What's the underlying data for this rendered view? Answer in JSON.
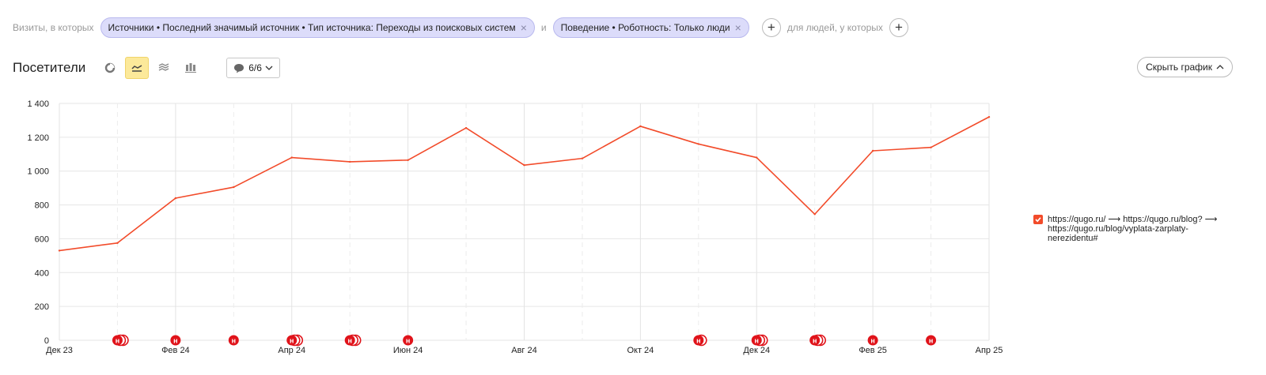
{
  "filters": {
    "prefix": "Визиты, в которых",
    "chip1": "Источники • Последний значимый источник • Тип источника: Переходы из поисковых систем",
    "connector": "и",
    "chip2": "Поведение • Роботность: Только люди",
    "suffix": "для людей, у которых"
  },
  "toolbar": {
    "title": "Посетители",
    "notes_label": "6/6",
    "hide_chart_label": "Скрыть график"
  },
  "legend": {
    "label": "https://qugo.ru/ ⟶ https://qugo.ru/blog? ⟶ https://qugo.ru/blog/vyplata-zarplaty-nerezidentu#"
  },
  "colors": {
    "series": "#f24b2a",
    "chip_bg": "#dcdcfa",
    "active_button": "#fce99a",
    "note_marker": "#e0131a"
  },
  "chart_data": {
    "type": "line",
    "title": "",
    "xlabel": "",
    "ylabel": "",
    "ylim": [
      0,
      1400
    ],
    "yticks": [
      0,
      200,
      400,
      600,
      800,
      1000,
      1200,
      1400
    ],
    "ytick_labels": [
      "0",
      "200",
      "400",
      "600",
      "800",
      "1 000",
      "1 200",
      "1 400"
    ],
    "grid": true,
    "legend_position": "right",
    "x_tick_labels": [
      "Дек 23",
      "Фев 24",
      "Апр 24",
      "Июн 24",
      "Авг 24",
      "Окт 24",
      "Дек 24",
      "Фев 25",
      "Апр 25"
    ],
    "x_tick_index": [
      0,
      2,
      4,
      6,
      8,
      10,
      12,
      14,
      16
    ],
    "series": [
      {
        "name": "https://qugo.ru/ ⟶ https://qugo.ru/blog? ⟶ https://qugo.ru/blog/vyplata-zarplaty-nerezidentu#",
        "color": "#f24b2a",
        "values": [
          530,
          575,
          840,
          905,
          1080,
          1055,
          1065,
          1255,
          1035,
          1075,
          1265,
          1160,
          1080,
          745,
          1120,
          1140,
          1320
        ]
      }
    ],
    "note_markers": [
      {
        "index": 1,
        "count": 3
      },
      {
        "index": 2,
        "count": 1
      },
      {
        "index": 3,
        "count": 1
      },
      {
        "index": 4,
        "count": 3
      },
      {
        "index": 5,
        "count": 3
      },
      {
        "index": 6,
        "count": 1
      },
      {
        "index": 11,
        "count": 2
      },
      {
        "index": 12,
        "count": 3
      },
      {
        "index": 13,
        "count": 3
      },
      {
        "index": 14,
        "count": 1
      },
      {
        "index": 15,
        "count": 1
      }
    ],
    "note_marker_letter": "н"
  }
}
